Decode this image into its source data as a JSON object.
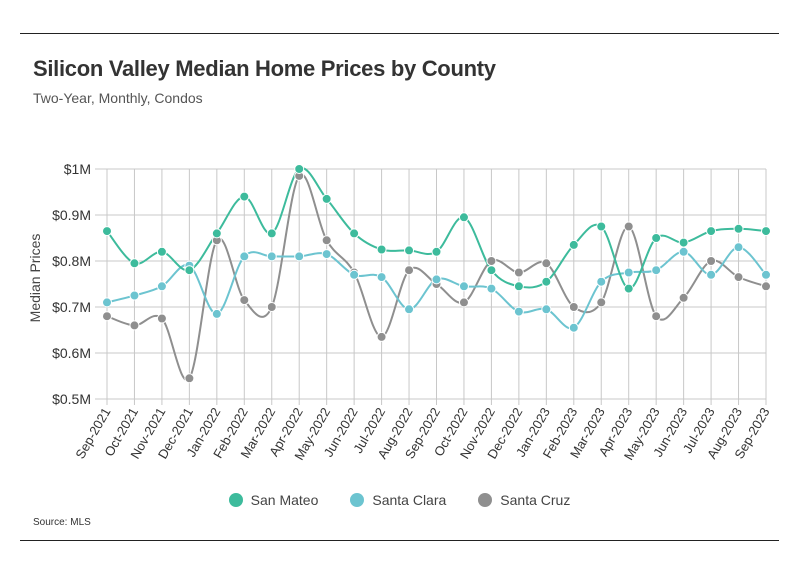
{
  "title": "Silicon Valley Median Home Prices by County",
  "subtitle": "Two-Year, Monthly, Condos",
  "source": "Source: MLS",
  "colors": {
    "San Mateo": "#3dbb9c",
    "Santa Clara": "#6cc4d0",
    "Santa Cruz": "#8f8f8f"
  },
  "chart_data": {
    "type": "line",
    "title": "Silicon Valley Median Home Prices by County",
    "subtitle": "Two-Year, Monthly, Condos",
    "ylabel": "Median Prices",
    "xlabel": "",
    "ylim": [
      0.5,
      1.0
    ],
    "yticks": [
      0.5,
      0.6,
      0.7,
      0.8,
      0.9,
      1.0
    ],
    "ytick_labels": [
      "$0.5M",
      "$0.6M",
      "$0.7M",
      "$0.8M",
      "$0.9M",
      "$1M"
    ],
    "grid": true,
    "legend_position": "bottom-center",
    "categories": [
      "Sep-2021",
      "Oct-2021",
      "Nov-2021",
      "Dec-2021",
      "Jan-2022",
      "Feb-2022",
      "Mar-2022",
      "Apr-2022",
      "May-2022",
      "Jun-2022",
      "Jul-2022",
      "Aug-2022",
      "Sep-2022",
      "Oct-2022",
      "Nov-2022",
      "Dec-2022",
      "Jan-2023",
      "Feb-2023",
      "Mar-2023",
      "Apr-2023",
      "May-2023",
      "Jun-2023",
      "Jul-2023",
      "Aug-2023",
      "Sep-2023"
    ],
    "series": [
      {
        "name": "San Mateo",
        "color": "#3dbb9c",
        "values": [
          0.865,
          0.795,
          0.82,
          0.78,
          0.86,
          0.94,
          0.86,
          1.0,
          0.935,
          0.86,
          0.825,
          0.823,
          0.82,
          0.895,
          0.78,
          0.745,
          0.755,
          0.835,
          0.875,
          0.74,
          0.85,
          0.84,
          0.865,
          0.87,
          0.865
        ]
      },
      {
        "name": "Santa Clara",
        "color": "#6cc4d0",
        "values": [
          0.71,
          0.725,
          0.745,
          0.79,
          0.685,
          0.81,
          0.81,
          0.81,
          0.815,
          0.77,
          0.765,
          0.695,
          0.76,
          0.745,
          0.74,
          0.69,
          0.695,
          0.655,
          0.755,
          0.775,
          0.78,
          0.82,
          0.77,
          0.83,
          0.77
        ]
      },
      {
        "name": "Santa Cruz",
        "color": "#8f8f8f",
        "values": [
          0.68,
          0.66,
          0.675,
          0.545,
          0.845,
          0.715,
          0.7,
          0.985,
          0.845,
          0.775,
          0.635,
          0.78,
          0.75,
          0.71,
          0.8,
          0.775,
          0.795,
          0.7,
          0.71,
          0.875,
          0.68,
          0.72,
          0.8,
          0.765,
          0.745
        ]
      }
    ]
  }
}
